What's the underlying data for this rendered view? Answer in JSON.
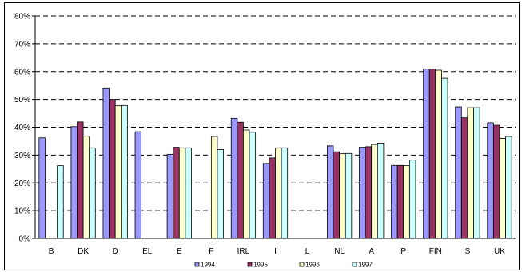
{
  "chart_data": {
    "type": "bar",
    "title": "",
    "xlabel": "",
    "ylabel": "",
    "categories": [
      "B",
      "DK",
      "D",
      "EL",
      "E",
      "F",
      "IRL",
      "I",
      "L",
      "NL",
      "A",
      "P",
      "FIN",
      "S",
      "UK"
    ],
    "y_ticks": [
      "0%",
      "10%",
      "20%",
      "30%",
      "40%",
      "50%",
      "60%",
      "70%",
      "80%"
    ],
    "ylim": [
      0,
      80
    ],
    "grid": "dashed horizontal",
    "legend_position": "bottom",
    "series": [
      {
        "name": "1994",
        "color": "#9999ff",
        "values": [
          36.2,
          40.2,
          54.1,
          38.4,
          30.3,
          null,
          43.2,
          27.0,
          null,
          33.3,
          32.8,
          26.3,
          60.9,
          47.3,
          41.6
        ]
      },
      {
        "name": "1995",
        "color": "#993366",
        "values": [
          null,
          41.9,
          50.0,
          null,
          32.8,
          null,
          41.8,
          29.0,
          null,
          31.2,
          33.0,
          26.3,
          60.9,
          43.4,
          40.7
        ]
      },
      {
        "name": "1996",
        "color": "#ffffcc",
        "values": [
          null,
          36.8,
          47.7,
          null,
          32.6,
          36.7,
          39.0,
          32.6,
          null,
          30.5,
          33.8,
          26.2,
          60.5,
          47.0,
          36.0
        ]
      },
      {
        "name": "1997",
        "color": "#ccffff",
        "values": [
          26.2,
          32.6,
          47.8,
          null,
          32.6,
          32.0,
          38.2,
          32.6,
          null,
          30.6,
          34.3,
          28.2,
          57.6,
          47.0,
          36.7
        ]
      }
    ]
  }
}
